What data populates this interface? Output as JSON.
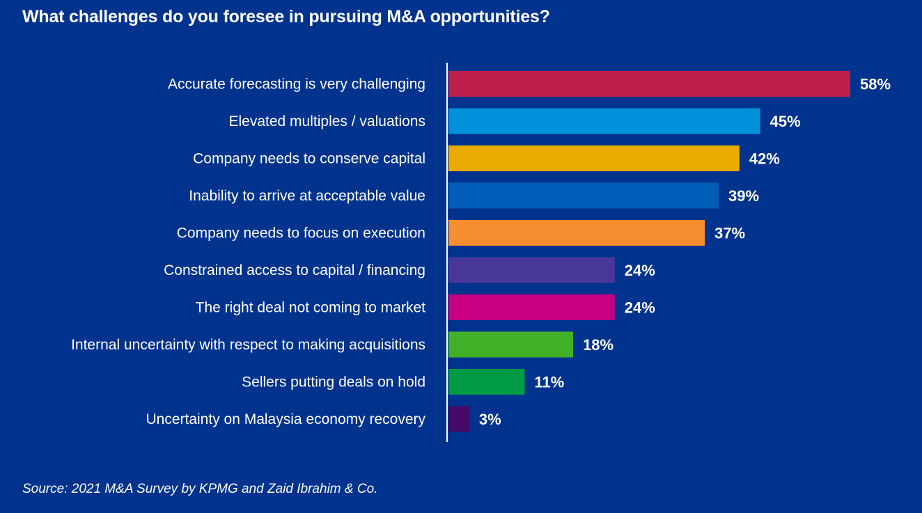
{
  "chart_data": {
    "type": "bar",
    "orientation": "horizontal",
    "title": "What challenges do you foresee in pursuing M&A opportunities?",
    "xlabel": "",
    "ylabel": "",
    "xlim": [
      0,
      58
    ],
    "grid": false,
    "legend": "none",
    "value_suffix": "%",
    "categories": [
      "Accurate forecasting is very challenging",
      "Elevated multiples / valuations",
      "Company needs to conserve capital",
      "Inability to arrive at acceptable value",
      "Company needs to focus on execution",
      "Constrained access to capital / financing",
      "The right deal not coming to market",
      "Internal uncertainty with respect to making acquisitions",
      "Sellers putting deals on hold",
      "Uncertainty on Malaysia economy recovery"
    ],
    "values": [
      58,
      45,
      42,
      39,
      37,
      24,
      24,
      18,
      11,
      3
    ],
    "bar_colors": [
      "#BD204D",
      "#0091DA",
      "#EAAA00",
      "#005EB8",
      "#F68D2E",
      "#483698",
      "#C6007E",
      "#43B02A",
      "#009A44",
      "#470A68"
    ]
  },
  "source": "Source: 2021 M&A Survey by KPMG and Zaid Ibrahim & Co.",
  "colors": {
    "background": "#00338D",
    "text": "#FFFFFF",
    "axis": "#FFFFFF"
  }
}
